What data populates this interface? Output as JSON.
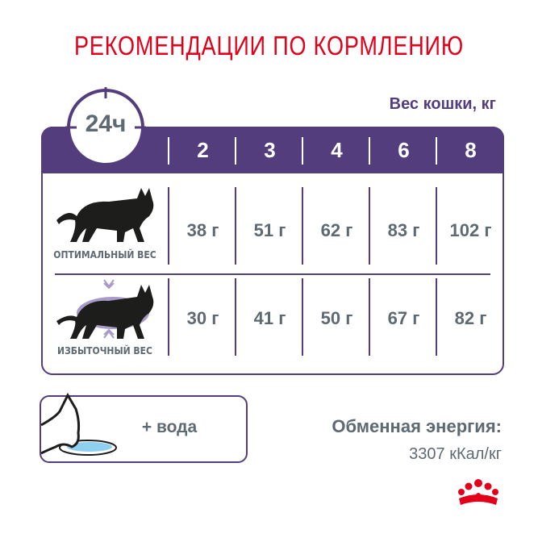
{
  "title": "РЕКОМЕНДАЦИИ ПО КОРМЛЕНИЮ",
  "weight_label": "Вес кошки, кг",
  "period": "24ч",
  "weights": [
    "2",
    "3",
    "4",
    "6",
    "8"
  ],
  "rows": [
    {
      "label": "ОПТИМАЛЬНЫЙ ВЕС",
      "values": [
        "38 г",
        "51 г",
        "62 г",
        "83 г",
        "102 г"
      ]
    },
    {
      "label": "ИЗБЫТОЧНЫЙ ВЕС",
      "values": [
        "30 г",
        "41 г",
        "50 г",
        "67 г",
        "82 г"
      ]
    }
  ],
  "water": "+ вода",
  "energy_label": "Обменная энергия:",
  "energy_value": "3307 кКал/кг",
  "colors": {
    "accent": "#533d7d",
    "title": "#e2001a",
    "text": "#5e6a72"
  }
}
